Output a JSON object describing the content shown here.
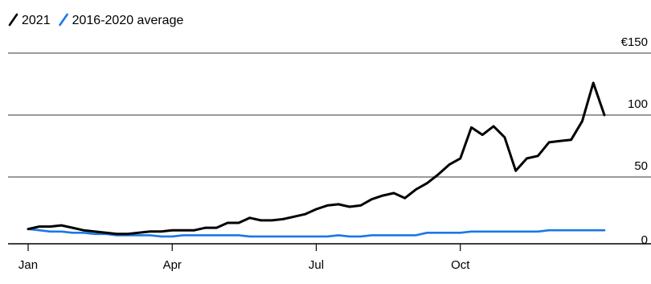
{
  "chart_data": {
    "type": "line",
    "title": "",
    "xlabel": "",
    "ylabel": "",
    "y_unit_prefix": "€",
    "ylim": [
      0,
      150
    ],
    "yticks": [
      {
        "value": 0,
        "label": "0"
      },
      {
        "value": 50,
        "label": "50"
      },
      {
        "value": 100,
        "label": "100"
      },
      {
        "value": 150,
        "label": "€150"
      }
    ],
    "xticks": [
      {
        "week": 1,
        "label": "Jan"
      },
      {
        "week": 14,
        "label": "Apr"
      },
      {
        "week": 27,
        "label": "Jul"
      },
      {
        "week": 40,
        "label": "Oct"
      }
    ],
    "grid": true,
    "legend_position": "top-left",
    "series": [
      {
        "name": "2021",
        "color": "#000000",
        "points": [
          [
            1,
            8
          ],
          [
            2,
            10
          ],
          [
            3,
            10
          ],
          [
            4,
            11
          ],
          [
            5,
            9
          ],
          [
            6,
            7
          ],
          [
            7,
            6
          ],
          [
            8,
            5
          ],
          [
            9,
            4
          ],
          [
            10,
            4
          ],
          [
            11,
            5
          ],
          [
            12,
            6
          ],
          [
            13,
            6
          ],
          [
            14,
            7
          ],
          [
            15,
            7
          ],
          [
            16,
            7
          ],
          [
            17,
            9
          ],
          [
            18,
            9
          ],
          [
            19,
            13
          ],
          [
            20,
            13
          ],
          [
            21,
            17
          ],
          [
            22,
            15
          ],
          [
            23,
            15
          ],
          [
            24,
            16
          ],
          [
            25,
            18
          ],
          [
            26,
            20
          ],
          [
            27,
            24
          ],
          [
            28,
            27
          ],
          [
            29,
            28
          ],
          [
            30,
            26
          ],
          [
            31,
            27
          ],
          [
            32,
            32
          ],
          [
            33,
            35
          ],
          [
            34,
            37
          ],
          [
            35,
            33
          ],
          [
            36,
            40
          ],
          [
            37,
            45
          ],
          [
            38,
            52
          ],
          [
            39,
            60
          ],
          [
            40,
            65
          ],
          [
            41,
            90
          ],
          [
            42,
            84
          ],
          [
            43,
            91
          ],
          [
            44,
            82
          ],
          [
            45,
            55
          ],
          [
            46,
            65
          ],
          [
            47,
            67
          ],
          [
            48,
            78
          ],
          [
            49,
            79
          ],
          [
            50,
            80
          ],
          [
            51,
            95
          ],
          [
            52,
            126
          ],
          [
            53,
            100
          ]
        ]
      },
      {
        "name": "2016-2020 average",
        "color": "#1a78e6",
        "points": [
          [
            1,
            8
          ],
          [
            2,
            7
          ],
          [
            3,
            6
          ],
          [
            4,
            6
          ],
          [
            5,
            5
          ],
          [
            6,
            5
          ],
          [
            7,
            4
          ],
          [
            8,
            4
          ],
          [
            9,
            3
          ],
          [
            10,
            3
          ],
          [
            11,
            3
          ],
          [
            12,
            3
          ],
          [
            13,
            2
          ],
          [
            14,
            2
          ],
          [
            15,
            3
          ],
          [
            16,
            3
          ],
          [
            17,
            3
          ],
          [
            18,
            3
          ],
          [
            19,
            3
          ],
          [
            20,
            3
          ],
          [
            21,
            2
          ],
          [
            22,
            2
          ],
          [
            23,
            2
          ],
          [
            24,
            2
          ],
          [
            25,
            2
          ],
          [
            26,
            2
          ],
          [
            27,
            2
          ],
          [
            28,
            2
          ],
          [
            29,
            3
          ],
          [
            30,
            2
          ],
          [
            31,
            2
          ],
          [
            32,
            3
          ],
          [
            33,
            3
          ],
          [
            34,
            3
          ],
          [
            35,
            3
          ],
          [
            36,
            3
          ],
          [
            37,
            5
          ],
          [
            38,
            5
          ],
          [
            39,
            5
          ],
          [
            40,
            5
          ],
          [
            41,
            6
          ],
          [
            42,
            6
          ],
          [
            43,
            6
          ],
          [
            44,
            6
          ],
          [
            45,
            6
          ],
          [
            46,
            6
          ],
          [
            47,
            6
          ],
          [
            48,
            7
          ],
          [
            49,
            7
          ],
          [
            50,
            7
          ],
          [
            51,
            7
          ],
          [
            52,
            7
          ],
          [
            53,
            7
          ]
        ]
      }
    ]
  },
  "legend": {
    "items": [
      {
        "label": "2021",
        "color": "#000000"
      },
      {
        "label": "2016-2020 average",
        "color": "#1a78e6"
      }
    ]
  },
  "colors": {
    "gridline": "#9a9a9a",
    "baseline": "#000000",
    "text": "#000000"
  }
}
